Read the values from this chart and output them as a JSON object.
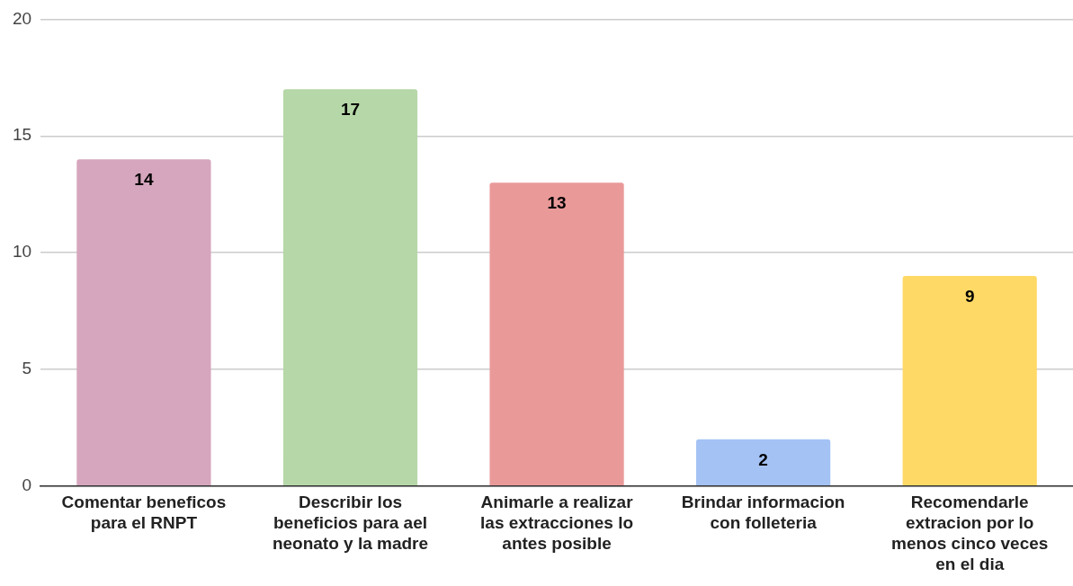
{
  "chart_data": {
    "type": "bar",
    "categories": [
      "Comentar beneficos para el RNPT",
      "Describir los beneficios para ael neonato y la madre",
      "Animarle a realizar las extracciones lo antes posible",
      "Brindar informacion con folleteria",
      "Recomendarle extracion por lo menos cinco veces en el dia"
    ],
    "values": [
      14,
      17,
      13,
      2,
      9
    ],
    "colors": [
      "#d5a6bd",
      "#b6d7a8",
      "#ea9999",
      "#a4c2f4",
      "#ffd966"
    ],
    "ylim": [
      0,
      20
    ],
    "yticks": [
      0,
      5,
      10,
      15,
      20
    ],
    "grid": "y",
    "legend": false,
    "data_labels": true
  }
}
